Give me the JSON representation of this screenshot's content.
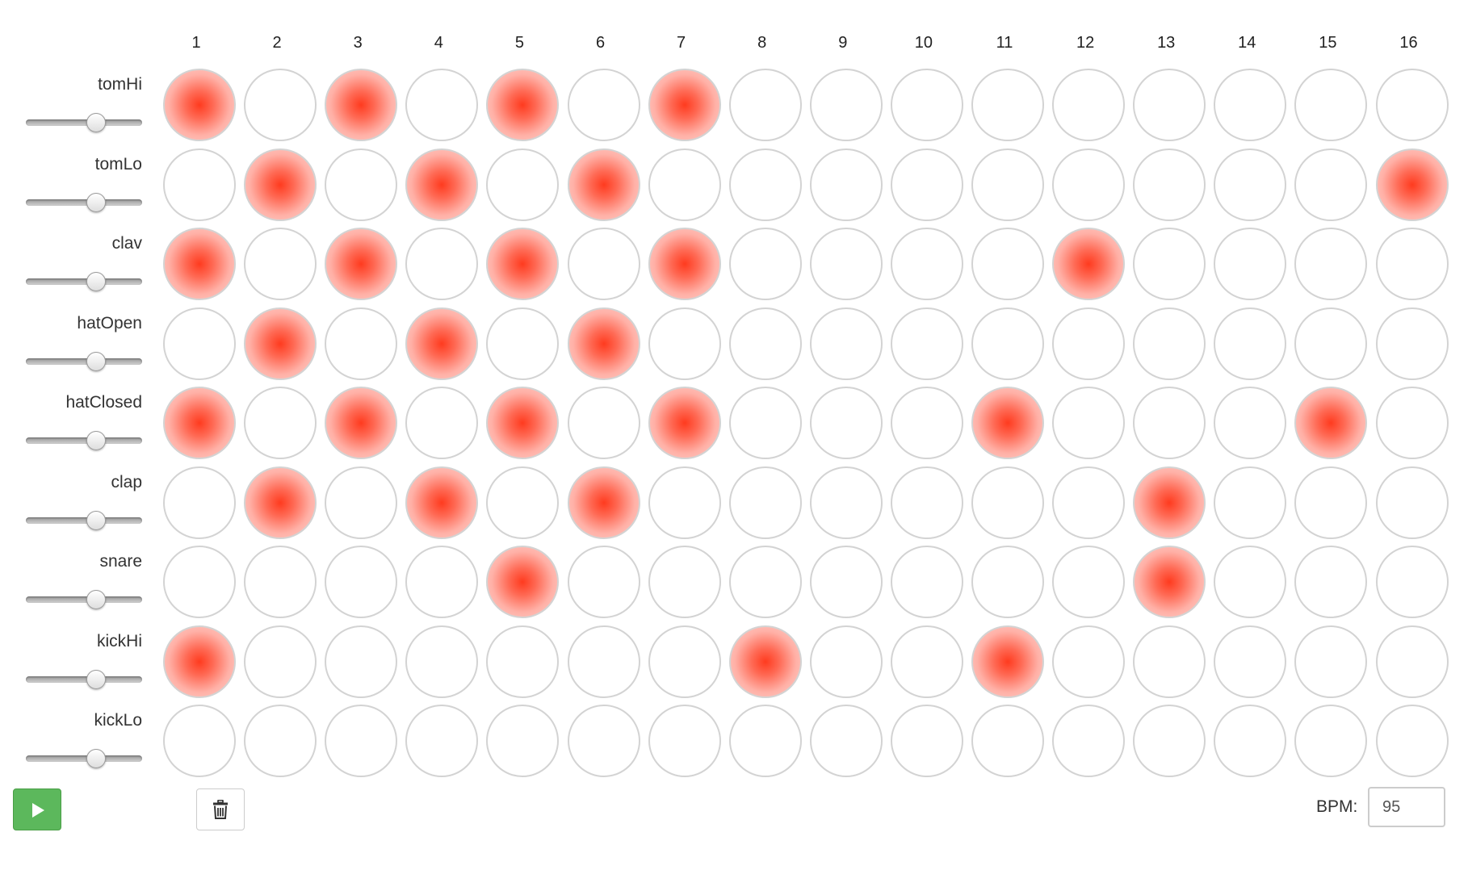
{
  "sequencer": {
    "step_labels": [
      "1",
      "2",
      "3",
      "4",
      "5",
      "6",
      "7",
      "8",
      "9",
      "10",
      "11",
      "12",
      "13",
      "14",
      "15",
      "16"
    ],
    "tracks": [
      {
        "name": "tomHi",
        "volume": 0.6,
        "steps": [
          1,
          0,
          1,
          0,
          1,
          0,
          1,
          0,
          0,
          0,
          0,
          0,
          0,
          0,
          0,
          0
        ]
      },
      {
        "name": "tomLo",
        "volume": 0.6,
        "steps": [
          0,
          1,
          0,
          1,
          0,
          1,
          0,
          0,
          0,
          0,
          0,
          0,
          0,
          0,
          0,
          1
        ]
      },
      {
        "name": "clav",
        "volume": 0.6,
        "steps": [
          1,
          0,
          1,
          0,
          1,
          0,
          1,
          0,
          0,
          0,
          0,
          1,
          0,
          0,
          0,
          0
        ]
      },
      {
        "name": "hatOpen",
        "volume": 0.6,
        "steps": [
          0,
          1,
          0,
          1,
          0,
          1,
          0,
          0,
          0,
          0,
          0,
          0,
          0,
          0,
          0,
          0
        ]
      },
      {
        "name": "hatClosed",
        "volume": 0.6,
        "steps": [
          1,
          0,
          1,
          0,
          1,
          0,
          1,
          0,
          0,
          0,
          1,
          0,
          0,
          0,
          1,
          0
        ]
      },
      {
        "name": "clap",
        "volume": 0.6,
        "steps": [
          0,
          1,
          0,
          1,
          0,
          1,
          0,
          0,
          0,
          0,
          0,
          0,
          1,
          0,
          0,
          0
        ]
      },
      {
        "name": "snare",
        "volume": 0.6,
        "steps": [
          0,
          0,
          0,
          0,
          1,
          0,
          0,
          0,
          0,
          0,
          0,
          0,
          1,
          0,
          0,
          0
        ]
      },
      {
        "name": "kickHi",
        "volume": 0.6,
        "steps": [
          1,
          0,
          0,
          0,
          0,
          0,
          0,
          1,
          0,
          0,
          1,
          0,
          0,
          0,
          0,
          0
        ]
      },
      {
        "name": "kickLo",
        "volume": 0.6,
        "steps": [
          0,
          0,
          0,
          0,
          0,
          0,
          0,
          0,
          0,
          0,
          0,
          0,
          0,
          0,
          0,
          0
        ]
      }
    ]
  },
  "controls": {
    "play_icon": "play-icon",
    "clear_icon": "trash-icon",
    "bpm_label": "BPM:",
    "bpm_value": "95"
  },
  "colors": {
    "active_step": "#ff3b1f",
    "play_button": "#5cb85c",
    "cell_border": "#d3d3d3"
  }
}
